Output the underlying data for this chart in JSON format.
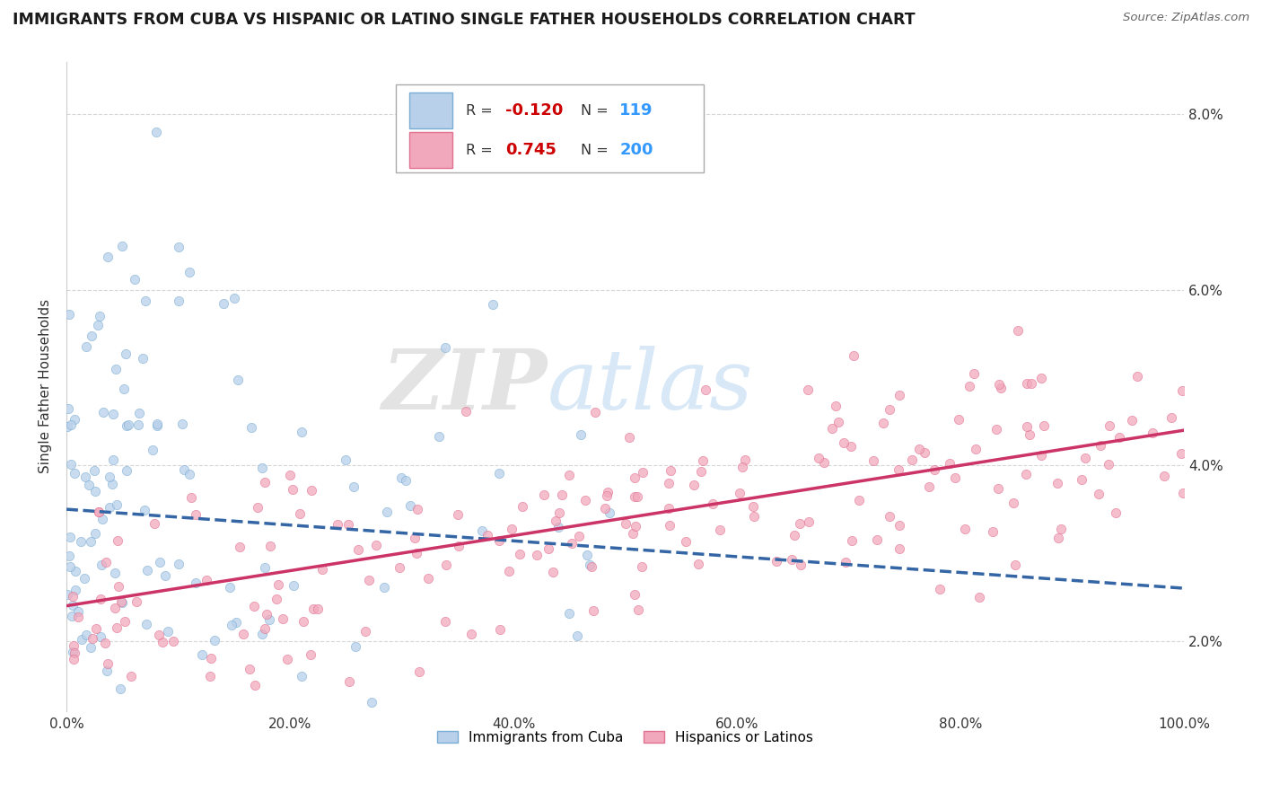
{
  "title": "IMMIGRANTS FROM CUBA VS HISPANIC OR LATINO SINGLE FATHER HOUSEHOLDS CORRELATION CHART",
  "source": "Source: ZipAtlas.com",
  "ylabel": "Single Father Households",
  "xlim": [
    0,
    100
  ],
  "ylim": [
    1.2,
    8.6
  ],
  "yticks": [
    2.0,
    4.0,
    6.0,
    8.0
  ],
  "xticks": [
    0,
    20,
    40,
    60,
    80,
    100
  ],
  "blue_R": -0.12,
  "blue_N": 119,
  "pink_R": 0.745,
  "pink_N": 200,
  "blue_scatter_color": "#b8d0ea",
  "pink_scatter_color": "#f2a8bc",
  "blue_edge_color": "#7aadd4",
  "pink_edge_color": "#e07090",
  "blue_line_color": "#3465a4",
  "pink_line_color": "#cc3366",
  "legend_R_neg_color": "#cc0000",
  "legend_R_pos_color": "#cc0000",
  "legend_N_color": "#3399ff",
  "blue_trend_start_y": 3.5,
  "blue_trend_end_y": 2.6,
  "pink_trend_start_y": 2.4,
  "pink_trend_end_y": 4.4,
  "watermark_zip_color": "#cccccc",
  "watermark_atlas_color": "#aaccee"
}
